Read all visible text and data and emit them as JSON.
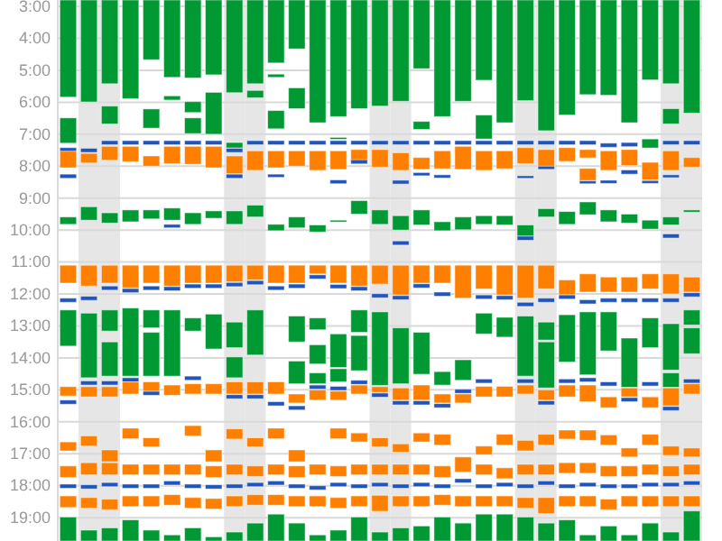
{
  "chart_data": {
    "type": "bar",
    "categories": [
      null,
      null,
      null,
      null,
      null,
      null,
      null,
      null,
      null,
      null,
      null,
      null,
      null,
      null,
      null,
      null,
      null,
      null,
      null,
      null,
      null,
      null,
      null,
      null,
      null,
      null,
      null,
      null,
      null,
      null,
      null
    ],
    "ylim": [
      19.73,
      2.8
    ],
    "tick_labels": "y",
    "grid": "y",
    "yticks": [
      {
        "value": 3,
        "label": "3:00"
      },
      {
        "value": 4,
        "label": "4:00"
      },
      {
        "value": 5,
        "label": "5:00"
      },
      {
        "value": 6,
        "label": "6:00"
      },
      {
        "value": 7,
        "label": "7:00"
      },
      {
        "value": 8,
        "label": "8:00"
      },
      {
        "value": 9,
        "label": "9:00"
      },
      {
        "value": 10,
        "label": "10:00"
      },
      {
        "value": 11,
        "label": "11:00"
      },
      {
        "value": 12,
        "label": "12:00"
      },
      {
        "value": 13,
        "label": "13:00"
      },
      {
        "value": 14,
        "label": "14:00"
      },
      {
        "value": 15,
        "label": "15:00"
      },
      {
        "value": 16,
        "label": "16:00"
      },
      {
        "value": 17,
        "label": "17:00"
      },
      {
        "value": 18,
        "label": "18:00"
      },
      {
        "value": 19,
        "label": "19:00"
      }
    ],
    "series": [
      {
        "color": "#009933",
        "base": [
          2.8,
          2.8,
          2.8,
          2.8,
          2.8,
          2.8,
          2.8,
          2.8,
          2.8,
          2.8,
          2.8,
          2.8,
          2.8,
          2.8,
          2.8,
          2.8,
          2.8,
          2.8,
          2.8,
          2.8,
          2.8,
          2.8,
          2.8,
          2.8,
          2.8,
          2.8,
          2.8,
          2.8,
          2.8,
          2.8,
          2.8
        ],
        "values": [
          3.04,
          3.19,
          2.62,
          3.09,
          1.87,
          2.42,
          2.44,
          2.34,
          2.9,
          2.62,
          1.97,
          1.53,
          3.84,
          3.65,
          3.4,
          3.32,
          3.17,
          2.15,
          3.65,
          3.17,
          2.51,
          3.84,
          3.15,
          4.09,
          3.6,
          2.96,
          2.98,
          3.84,
          2.5,
          2.62,
          3.54
        ]
      },
      {
        "color": "#009933",
        "base": [
          6.49,
          null,
          6.12,
          null,
          6.21,
          5.8,
          6.49,
          5.69,
          7.26,
          5.63,
          6.26,
          5.55,
          null,
          7.1,
          null,
          null,
          null,
          6.6,
          null,
          null,
          6.4,
          null,
          null,
          null,
          null,
          null,
          null,
          null,
          7.15,
          6.2,
          null
        ],
        "values": [
          0.79,
          null,
          0.56,
          null,
          0.6,
          0.13,
          0.49,
          1.31,
          0.17,
          0.23,
          0.57,
          0.65,
          null,
          0.06,
          null,
          null,
          null,
          0.25,
          null,
          null,
          0.75,
          null,
          null,
          null,
          null,
          null,
          null,
          null,
          0.28,
          0.48,
          null
        ]
      },
      {
        "color": "#009933",
        "base": [
          null,
          null,
          null,
          null,
          null,
          null,
          5.98,
          null,
          null,
          null,
          5.12,
          null,
          null,
          null,
          null,
          null,
          null,
          null,
          null,
          null,
          null,
          null,
          null,
          null,
          null,
          null,
          null,
          null,
          null,
          null,
          null
        ],
        "values": [
          null,
          null,
          null,
          null,
          null,
          null,
          0.34,
          null,
          null,
          null,
          0.1,
          null,
          null,
          null,
          null,
          null,
          null,
          null,
          null,
          null,
          null,
          null,
          null,
          null,
          null,
          null,
          null,
          null,
          null,
          null,
          null
        ]
      },
      {
        "color": "#2255bb",
        "base": [
          7.42,
          7.44,
          7.2,
          7.2,
          7.2,
          7.2,
          7.2,
          7.2,
          7.44,
          7.2,
          7.2,
          7.2,
          7.2,
          7.2,
          7.2,
          7.2,
          7.2,
          7.2,
          7.2,
          7.2,
          7.2,
          7.2,
          7.2,
          7.2,
          7.2,
          7.2,
          7.28,
          7.26,
          null,
          7.2,
          7.2
        ],
        "values": [
          0.13,
          0.13,
          0.13,
          0.13,
          0.13,
          0.13,
          0.13,
          0.13,
          0.13,
          0.13,
          0.13,
          0.13,
          0.13,
          0.13,
          0.13,
          0.13,
          0.13,
          0.13,
          0.13,
          0.13,
          0.13,
          0.13,
          0.13,
          0.13,
          0.13,
          0.13,
          0.13,
          0.13,
          null,
          0.13,
          0.13
        ]
      },
      {
        "color": "#ff7f00",
        "base": [
          7.53,
          7.6,
          7.38,
          7.38,
          7.68,
          7.38,
          7.38,
          7.38,
          7.68,
          7.52,
          7.52,
          7.52,
          7.52,
          7.52,
          7.48,
          7.48,
          7.58,
          7.73,
          7.52,
          7.38,
          7.52,
          7.52,
          7.42,
          7.48,
          7.42,
          7.48,
          7.52,
          7.48,
          7.88,
          7.52,
          7.73
        ],
        "values": [
          0.52,
          0.3,
          0.43,
          0.48,
          0.32,
          0.54,
          0.56,
          0.67,
          0.56,
          0.61,
          0.53,
          0.48,
          0.61,
          0.58,
          0.38,
          0.55,
          0.55,
          0.37,
          0.56,
          0.72,
          0.61,
          0.56,
          0.5,
          0.56,
          0.43,
          0.26,
          0.61,
          0.5,
          0.55,
          0.61,
          0.3
        ]
      },
      {
        "color": "#ff7f00",
        "base": [
          null,
          null,
          null,
          null,
          null,
          null,
          null,
          null,
          null,
          null,
          null,
          null,
          null,
          null,
          null,
          null,
          null,
          null,
          null,
          null,
          null,
          null,
          null,
          null,
          null,
          8.07,
          null,
          null,
          null,
          null,
          null
        ],
        "values": [
          null,
          null,
          null,
          null,
          null,
          null,
          null,
          null,
          null,
          null,
          null,
          null,
          null,
          null,
          null,
          null,
          null,
          null,
          null,
          null,
          null,
          null,
          null,
          null,
          null,
          0.38,
          null,
          null,
          null,
          null,
          null
        ]
      },
      {
        "color": "#2255bb",
        "base": [
          8.25,
          null,
          null,
          null,
          null,
          null,
          null,
          null,
          8.25,
          null,
          8.25,
          null,
          null,
          8.43,
          7.8,
          null,
          8.44,
          8.2,
          8.27,
          null,
          null,
          null,
          8.3,
          8.0,
          null,
          8.46,
          8.44,
          8.12,
          8.45,
          8.27,
          null
        ],
        "values": [
          0.13,
          null,
          null,
          null,
          null,
          null,
          null,
          null,
          0.13,
          null,
          0.1,
          null,
          null,
          0.12,
          0.13,
          null,
          0.12,
          0.1,
          0.1,
          null,
          null,
          null,
          0.08,
          0.1,
          null,
          0.09,
          0.1,
          0.13,
          0.09,
          0.09,
          null
        ]
      },
      {
        "color": "#009933",
        "base": [
          9.59,
          9.27,
          9.46,
          9.37,
          9.37,
          9.31,
          9.46,
          9.4,
          9.4,
          9.22,
          9.82,
          9.59,
          9.84,
          9.69,
          9.08,
          9.37,
          9.55,
          9.37,
          9.74,
          9.59,
          9.55,
          9.55,
          9.84,
          9.33,
          9.42,
          9.12,
          9.37,
          9.5,
          9.69,
          9.59,
          9.37
        ],
        "values": [
          0.23,
          0.42,
          0.32,
          0.37,
          0.28,
          0.38,
          0.36,
          0.23,
          0.42,
          0.37,
          0.2,
          0.34,
          0.22,
          0.05,
          0.42,
          0.45,
          0.45,
          0.47,
          0.28,
          0.4,
          0.27,
          0.29,
          0.35,
          0.26,
          0.4,
          0.4,
          0.37,
          0.28,
          0.28,
          0.25,
          0.07
        ]
      },
      {
        "color": "#2255bb",
        "base": [
          null,
          null,
          null,
          null,
          null,
          9.82,
          null,
          null,
          null,
          null,
          null,
          null,
          null,
          null,
          null,
          null,
          10.34,
          null,
          null,
          null,
          null,
          null,
          10.19,
          null,
          null,
          null,
          null,
          null,
          null,
          10.12,
          null
        ],
        "values": [
          null,
          null,
          null,
          null,
          null,
          0.11,
          null,
          null,
          null,
          null,
          null,
          null,
          null,
          null,
          null,
          null,
          0.13,
          null,
          null,
          null,
          null,
          null,
          0.13,
          null,
          null,
          null,
          null,
          null,
          null,
          0.13,
          null
        ]
      },
      {
        "color": "#ff7f00",
        "base": [
          11.1,
          11.1,
          11.1,
          11.1,
          11.1,
          11.1,
          11.1,
          11.1,
          11.1,
          11.1,
          11.1,
          11.1,
          11.1,
          11.1,
          11.1,
          11.1,
          11.1,
          11.1,
          11.1,
          11.1,
          11.1,
          11.1,
          11.1,
          11.1,
          11.56,
          11.37,
          11.47,
          11.47,
          11.37,
          11.37,
          11.47
        ],
        "values": [
          0.56,
          0.65,
          0.56,
          0.71,
          0.56,
          0.65,
          0.56,
          0.56,
          0.52,
          0.46,
          0.56,
          0.56,
          0.27,
          0.56,
          0.65,
          0.59,
          0.93,
          0.56,
          0.56,
          1.03,
          0.74,
          0.93,
          1.03,
          0.74,
          0.47,
          0.57,
          0.47,
          0.47,
          0.47,
          0.63,
          0.47
        ]
      },
      {
        "color": "#2255bb",
        "base": [
          12.13,
          12.07,
          11.75,
          11.83,
          11.75,
          11.77,
          11.69,
          11.69,
          11.64,
          11.58,
          11.75,
          11.69,
          11.4,
          11.7,
          11.77,
          11.99,
          12.05,
          11.68,
          11.94,
          null,
          12.03,
          12.05,
          12.26,
          12.13,
          12.03,
          12.18,
          12.13,
          12.13,
          12.13,
          12.13,
          11.96
        ],
        "values": [
          0.13,
          0.13,
          0.13,
          0.13,
          0.13,
          0.13,
          0.13,
          0.13,
          0.13,
          0.13,
          0.13,
          0.13,
          0.13,
          0.13,
          0.13,
          0.13,
          0.13,
          0.13,
          0.13,
          null,
          0.13,
          0.13,
          0.13,
          0.13,
          0.13,
          0.13,
          0.13,
          0.13,
          0.13,
          0.13,
          0.13
        ]
      },
      {
        "color": "#009933",
        "base": [
          12.5,
          12.6,
          12.5,
          12.44,
          12.5,
          12.5,
          12.75,
          12.63,
          12.88,
          12.5,
          null,
          12.69,
          12.75,
          13.25,
          12.5,
          12.56,
          13.06,
          13.2,
          14.43,
          14.06,
          12.6,
          12.73,
          12.69,
          12.88,
          12.65,
          12.56,
          12.56,
          13.38,
          12.75,
          12.93,
          12.5
        ],
        "values": [
          1.13,
          2.02,
          0.66,
          2.13,
          0.56,
          2.07,
          0.41,
          1.09,
          0.8,
          1.41,
          null,
          0.81,
          0.37,
          1.05,
          0.7,
          2.3,
          1.75,
          1.31,
          0.42,
          0.64,
          0.65,
          0.62,
          1.88,
          0.56,
          1.48,
          1.97,
          1.22,
          1.54,
          0.93,
          1.45,
          0.47
        ]
      },
      {
        "color": "#009933",
        "base": [
          null,
          null,
          13.5,
          null,
          13.2,
          null,
          null,
          null,
          13.97,
          null,
          null,
          14.1,
          13.59,
          14.34,
          13.3,
          null,
          null,
          null,
          null,
          null,
          null,
          null,
          null,
          13.5,
          null,
          null,
          null,
          null,
          null,
          14.47,
          13.06
        ],
        "values": [
          null,
          null,
          1.07,
          null,
          1.37,
          null,
          null,
          null,
          0.65,
          null,
          null,
          0.71,
          0.6,
          0.41,
          1.1,
          null,
          null,
          null,
          null,
          null,
          null,
          null,
          null,
          1.44,
          null,
          null,
          null,
          null,
          null,
          0.45,
          0.81
        ]
      },
      {
        "color": "#009933",
        "base": [
          null,
          null,
          null,
          null,
          null,
          null,
          null,
          null,
          null,
          null,
          null,
          null,
          14.47,
          null,
          null,
          null,
          null,
          null,
          null,
          null,
          null,
          null,
          null,
          null,
          null,
          null,
          null,
          null,
          null,
          null,
          null
        ],
        "values": [
          null,
          null,
          null,
          null,
          null,
          null,
          null,
          null,
          null,
          null,
          null,
          null,
          0.34,
          null,
          null,
          null,
          null,
          null,
          null,
          null,
          null,
          null,
          null,
          null,
          null,
          null,
          null,
          null,
          null,
          null,
          null
        ]
      },
      {
        "color": "#2255bb",
        "base": [
          15.32,
          14.72,
          14.72,
          14.62,
          15.04,
          null,
          14.57,
          null,
          15.15,
          15.15,
          15.37,
          15.5,
          14.85,
          14.89,
          14.7,
          15.1,
          15.34,
          15.34,
          15.43,
          14.98,
          14.66,
          null,
          14.66,
          15.34,
          14.66,
          14.62,
          14.75,
          15.24,
          14.75,
          15.52,
          14.66
        ],
        "values": [
          0.13,
          0.13,
          0.13,
          0.13,
          0.13,
          null,
          0.13,
          null,
          0.13,
          0.13,
          0.13,
          0.13,
          0.13,
          0.13,
          0.13,
          0.13,
          0.13,
          0.13,
          0.13,
          0.13,
          0.13,
          null,
          0.13,
          0.13,
          0.13,
          0.13,
          0.13,
          0.13,
          0.13,
          0.13,
          0.13
        ]
      },
      {
        "color": "#ff7f00",
        "base": [
          14.9,
          14.9,
          14.9,
          14.75,
          14.75,
          14.85,
          14.81,
          14.81,
          14.75,
          14.75,
          14.75,
          15.13,
          15.0,
          15.04,
          14.85,
          14.9,
          14.94,
          14.85,
          15.13,
          15.13,
          14.89,
          14.89,
          14.85,
          15.0,
          14.85,
          14.85,
          15.22,
          14.94,
          15.22,
          14.94,
          14.81
        ],
        "values": [
          0.29,
          0.32,
          0.32,
          0.38,
          0.29,
          0.32,
          0.32,
          0.32,
          0.38,
          0.38,
          0.38,
          0.28,
          0.32,
          0.28,
          0.28,
          0.18,
          0.38,
          0.47,
          0.28,
          0.28,
          0.33,
          0.33,
          0.28,
          0.32,
          0.37,
          0.52,
          0.34,
          0.28,
          0.34,
          0.56,
          0.32
        ]
      },
      {
        "color": "#ff7f00",
        "base": [
          16.63,
          16.44,
          16.88,
          16.2,
          16.5,
          null,
          16.12,
          16.88,
          16.22,
          16.5,
          16.2,
          16.88,
          null,
          16.2,
          16.35,
          16.5,
          16.69,
          16.35,
          16.39,
          17.1,
          16.76,
          16.39,
          16.58,
          16.39,
          16.26,
          16.26,
          16.41,
          16.82,
          16.39,
          16.76,
          16.82
        ],
        "values": [
          0.28,
          0.32,
          0.37,
          0.33,
          0.28,
          null,
          0.32,
          0.37,
          0.32,
          0.28,
          0.33,
          0.37,
          null,
          0.33,
          0.28,
          0.28,
          0.26,
          0.28,
          0.34,
          0.47,
          0.27,
          0.34,
          0.33,
          0.34,
          0.28,
          0.32,
          0.32,
          0.28,
          0.34,
          0.29,
          0.28
        ]
      },
      {
        "color": "#ff7f00",
        "base": [
          17.38,
          17.28,
          17.28,
          17.33,
          17.33,
          17.33,
          17.33,
          17.38,
          17.33,
          17.38,
          17.33,
          17.38,
          17.33,
          17.38,
          17.33,
          17.33,
          17.33,
          17.33,
          17.38,
          null,
          17.33,
          17.44,
          17.33,
          17.33,
          17.28,
          17.28,
          17.38,
          17.38,
          17.33,
          17.38,
          17.33
        ],
        "values": [
          0.36,
          0.38,
          0.38,
          0.33,
          0.33,
          0.33,
          0.33,
          0.36,
          0.33,
          0.33,
          0.33,
          0.36,
          0.33,
          0.33,
          0.33,
          0.33,
          0.33,
          0.33,
          0.36,
          null,
          0.33,
          0.34,
          0.33,
          0.33,
          0.33,
          0.33,
          0.33,
          0.33,
          0.33,
          0.33,
          0.33
        ]
      },
      {
        "color": "#2255bb",
        "base": [
          17.95,
          17.97,
          17.9,
          17.95,
          17.95,
          17.85,
          17.95,
          17.97,
          17.95,
          17.9,
          17.85,
          17.95,
          18.0,
          17.9,
          17.95,
          17.9,
          17.95,
          17.9,
          17.95,
          17.78,
          17.95,
          17.9,
          17.95,
          17.85,
          17.95,
          17.9,
          17.95,
          17.95,
          17.9,
          17.9,
          17.85
        ],
        "values": [
          0.13,
          0.13,
          0.13,
          0.13,
          0.13,
          0.13,
          0.13,
          0.13,
          0.13,
          0.13,
          0.13,
          0.13,
          0.13,
          0.13,
          0.13,
          0.13,
          0.13,
          0.13,
          0.13,
          0.13,
          0.13,
          0.13,
          0.13,
          0.13,
          0.13,
          0.13,
          0.13,
          0.13,
          0.13,
          0.13,
          0.13
        ]
      },
      {
        "color": "#ff7f00",
        "base": [
          18.32,
          18.37,
          18.42,
          18.32,
          18.32,
          18.28,
          18.37,
          18.4,
          18.32,
          18.28,
          18.28,
          18.32,
          18.32,
          18.37,
          18.32,
          18.3,
          18.32,
          18.32,
          18.28,
          18.32,
          18.32,
          18.32,
          18.37,
          18.37,
          18.32,
          18.32,
          18.42,
          18.32,
          18.32,
          18.32,
          18.32
        ],
        "values": [
          0.36,
          0.33,
          0.33,
          0.33,
          0.33,
          0.33,
          0.33,
          0.33,
          0.33,
          0.33,
          0.33,
          0.33,
          0.33,
          0.33,
          0.33,
          0.5,
          0.33,
          0.33,
          0.33,
          0.33,
          0.33,
          0.33,
          0.33,
          0.5,
          0.33,
          0.33,
          0.33,
          0.33,
          0.33,
          0.33,
          0.33
        ]
      },
      {
        "color": "#009933",
        "base": [
          18.98,
          19.39,
          19.32,
          19.07,
          19.39,
          19.54,
          19.32,
          19.6,
          19.45,
          19.17,
          18.89,
          19.17,
          19.54,
          19.39,
          18.98,
          19.45,
          19.32,
          19.26,
          18.98,
          19.17,
          18.89,
          18.89,
          18.98,
          19.17,
          19.07,
          19.54,
          19.26,
          19.54,
          19.17,
          19.45,
          18.79
        ],
        "values": [
          0.75,
          0.34,
          0.41,
          0.66,
          0.34,
          0.19,
          0.41,
          0.13,
          0.28,
          0.56,
          0.84,
          0.56,
          0.19,
          0.34,
          0.75,
          0.28,
          0.41,
          0.47,
          0.75,
          0.56,
          0.84,
          0.84,
          0.75,
          0.56,
          0.66,
          0.19,
          0.47,
          0.19,
          0.56,
          0.28,
          0.94
        ]
      }
    ]
  }
}
